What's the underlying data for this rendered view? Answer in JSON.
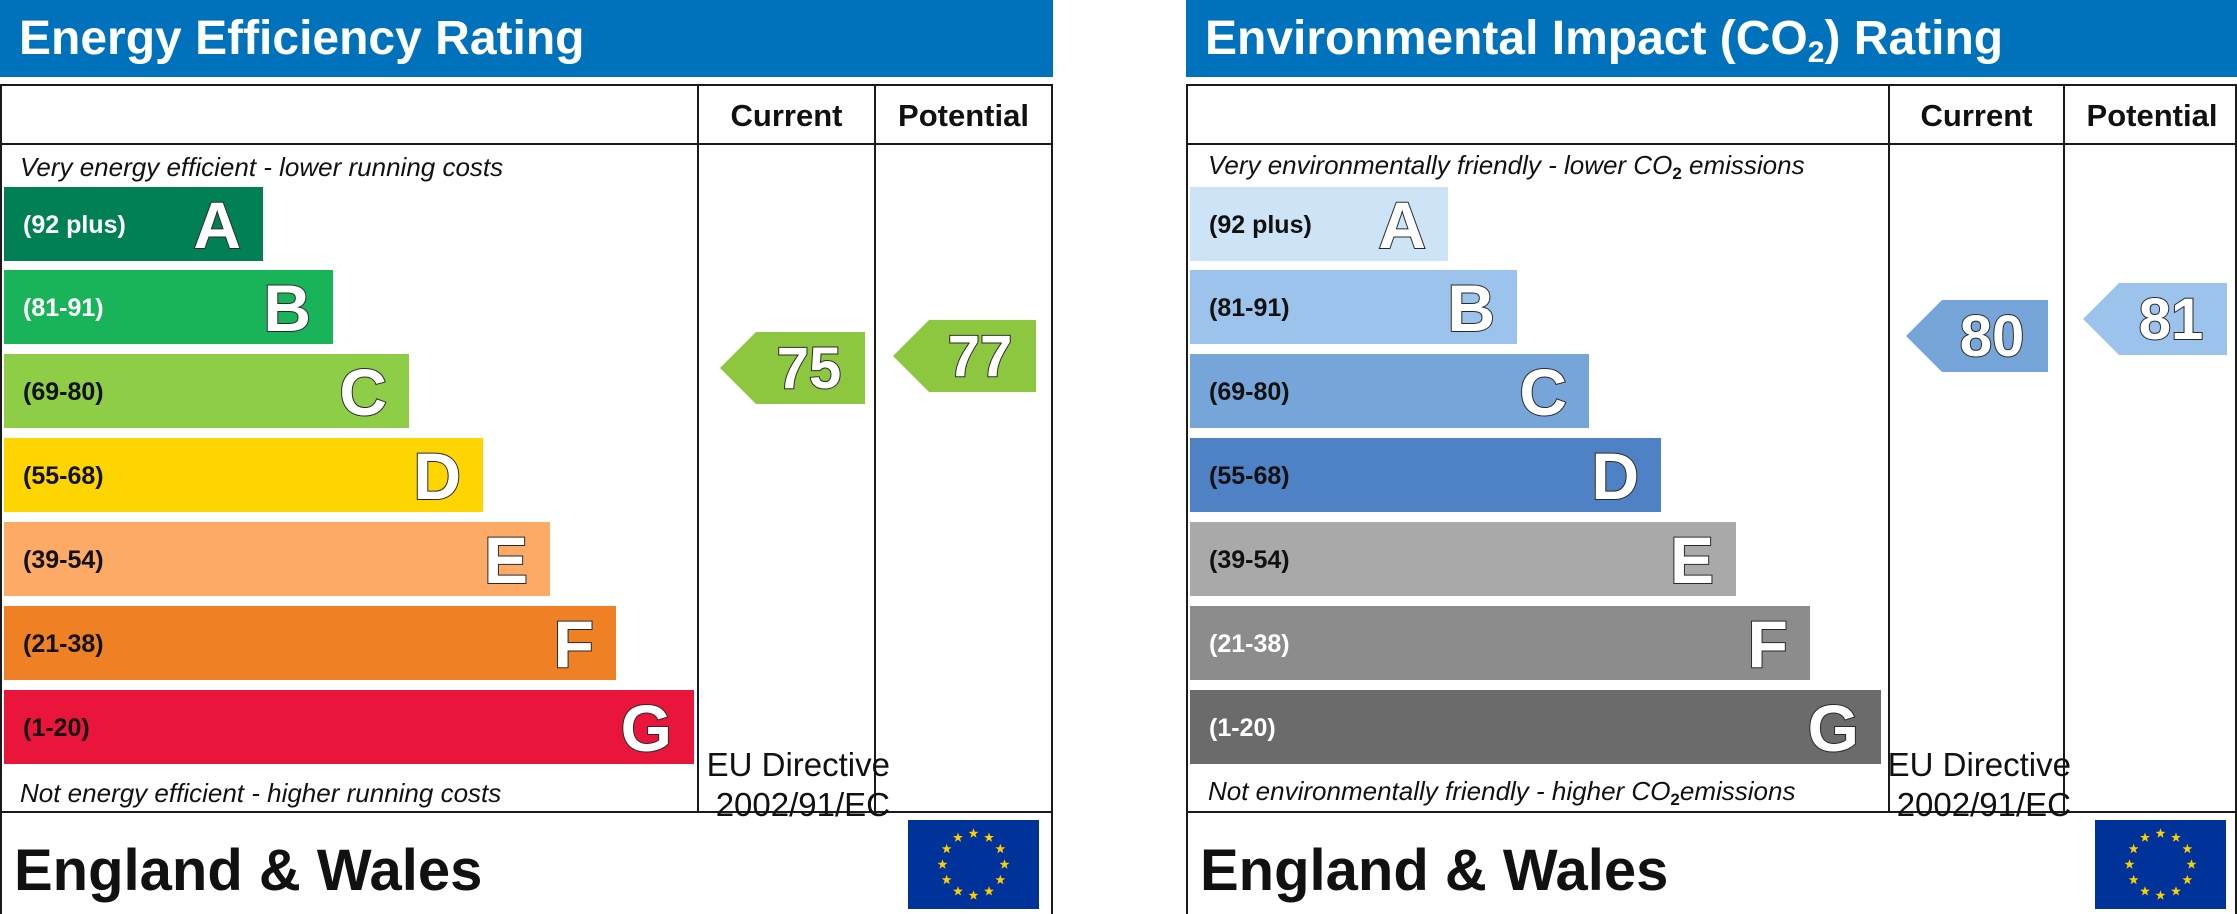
{
  "energy": {
    "title": "Energy Efficiency Rating",
    "col_current": "Current",
    "col_potential": "Potential",
    "top_caption": "Very energy efficient - lower running costs",
    "bottom_caption": "Not energy efficient - higher running costs",
    "bands": [
      {
        "range": "(92 plus)",
        "letter": "A",
        "color": "#008054",
        "text_color": "#ffffff"
      },
      {
        "range": "(81-91)",
        "letter": "B",
        "color": "#19b459",
        "text_color": "#ffffff"
      },
      {
        "range": "(69-80)",
        "letter": "C",
        "color": "#8dce46",
        "text_color": "#111111"
      },
      {
        "range": "(55-68)",
        "letter": "D",
        "color": "#ffd500",
        "text_color": "#111111"
      },
      {
        "range": "(39-54)",
        "letter": "E",
        "color": "#fcaa65",
        "text_color": "#111111"
      },
      {
        "range": "(21-38)",
        "letter": "F",
        "color": "#ef8023",
        "text_color": "#111111"
      },
      {
        "range": "(1-20)",
        "letter": "G",
        "color": "#e9153b",
        "text_color": "#111111"
      }
    ],
    "current": {
      "value": "75",
      "color": "#8dc63f"
    },
    "potential": {
      "value": "77",
      "color": "#8dc63f"
    },
    "country": "England & Wales",
    "directive_line1": "EU Directive",
    "directive_line2": "2002/91/EC"
  },
  "environment": {
    "title_main": "Environmental Impact (CO",
    "title_sub": "2",
    "title_end": ") Rating",
    "col_current": "Current",
    "col_potential": "Potential",
    "top_caption_main": "Very environmentally friendly - lower CO",
    "top_caption_sub": "2",
    "top_caption_end": " emissions",
    "bottom_caption_main": "Not environmentally friendly - higher CO",
    "bottom_caption_sub": "2",
    "bottom_caption_end": "emissions",
    "bands": [
      {
        "range": "(92 plus)",
        "letter": "A",
        "color": "#cde4f6",
        "text_color": "#111111"
      },
      {
        "range": "(81-91)",
        "letter": "B",
        "color": "#9cc3ec",
        "text_color": "#111111"
      },
      {
        "range": "(69-80)",
        "letter": "C",
        "color": "#76a6d9",
        "text_color": "#111111"
      },
      {
        "range": "(55-68)",
        "letter": "D",
        "color": "#4f82c4",
        "text_color": "#111111"
      },
      {
        "range": "(39-54)",
        "letter": "E",
        "color": "#a9a9a9",
        "text_color": "#111111"
      },
      {
        "range": "(21-38)",
        "letter": "F",
        "color": "#8c8c8c",
        "text_color": "#ffffff"
      },
      {
        "range": "(1-20)",
        "letter": "G",
        "color": "#6b6b6b",
        "text_color": "#ffffff"
      }
    ],
    "current": {
      "value": "80",
      "color": "#76a6d9"
    },
    "potential": {
      "value": "81",
      "color": "#9cc3ec"
    },
    "country": "England & Wales",
    "directive_line1": "EU Directive",
    "directive_line2": "2002/91/EC"
  }
}
